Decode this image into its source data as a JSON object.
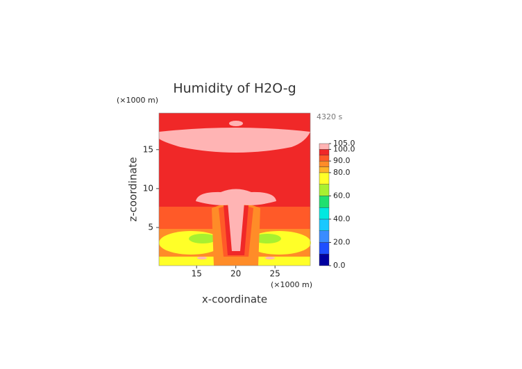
{
  "chart_data": {
    "type": "contour",
    "title": "Humidity of H2O-g",
    "x_label": "x-coordinate",
    "y_label": "z-coordinate",
    "x_unit": "(×1000 m)",
    "y_unit": "(×1000 m)",
    "time_label": "4320 s",
    "xlim": [
      10.2,
      29.5
    ],
    "xticks": [
      15,
      20,
      25
    ],
    "ylim": [
      0.1,
      19.7
    ],
    "yticks": [
      5,
      10,
      15
    ],
    "colorbar": {
      "levels": [
        0,
        10,
        20,
        30,
        40,
        50,
        60,
        70,
        80,
        85,
        90,
        95,
        100,
        105
      ],
      "colors": [
        "#0000a0",
        "#1f4fff",
        "#3a8cff",
        "#19c8ff",
        "#00e8e0",
        "#20e070",
        "#a8f030",
        "#ffff28",
        "#ffb428",
        "#ff8c28",
        "#ff5a28",
        "#f02828",
        "#ffb4b4"
      ],
      "ticks": [
        {
          "value": 0,
          "label": "0.0"
        },
        {
          "value": 20,
          "label": "20.0"
        },
        {
          "value": 40,
          "label": "40.0"
        },
        {
          "value": 60,
          "label": "60.0"
        },
        {
          "value": 80,
          "label": "80.0"
        },
        {
          "value": 90,
          "label": "90.0"
        },
        {
          "value": 100,
          "label": "100.0"
        },
        {
          "value": 105,
          "label": "105.0"
        }
      ]
    }
  }
}
